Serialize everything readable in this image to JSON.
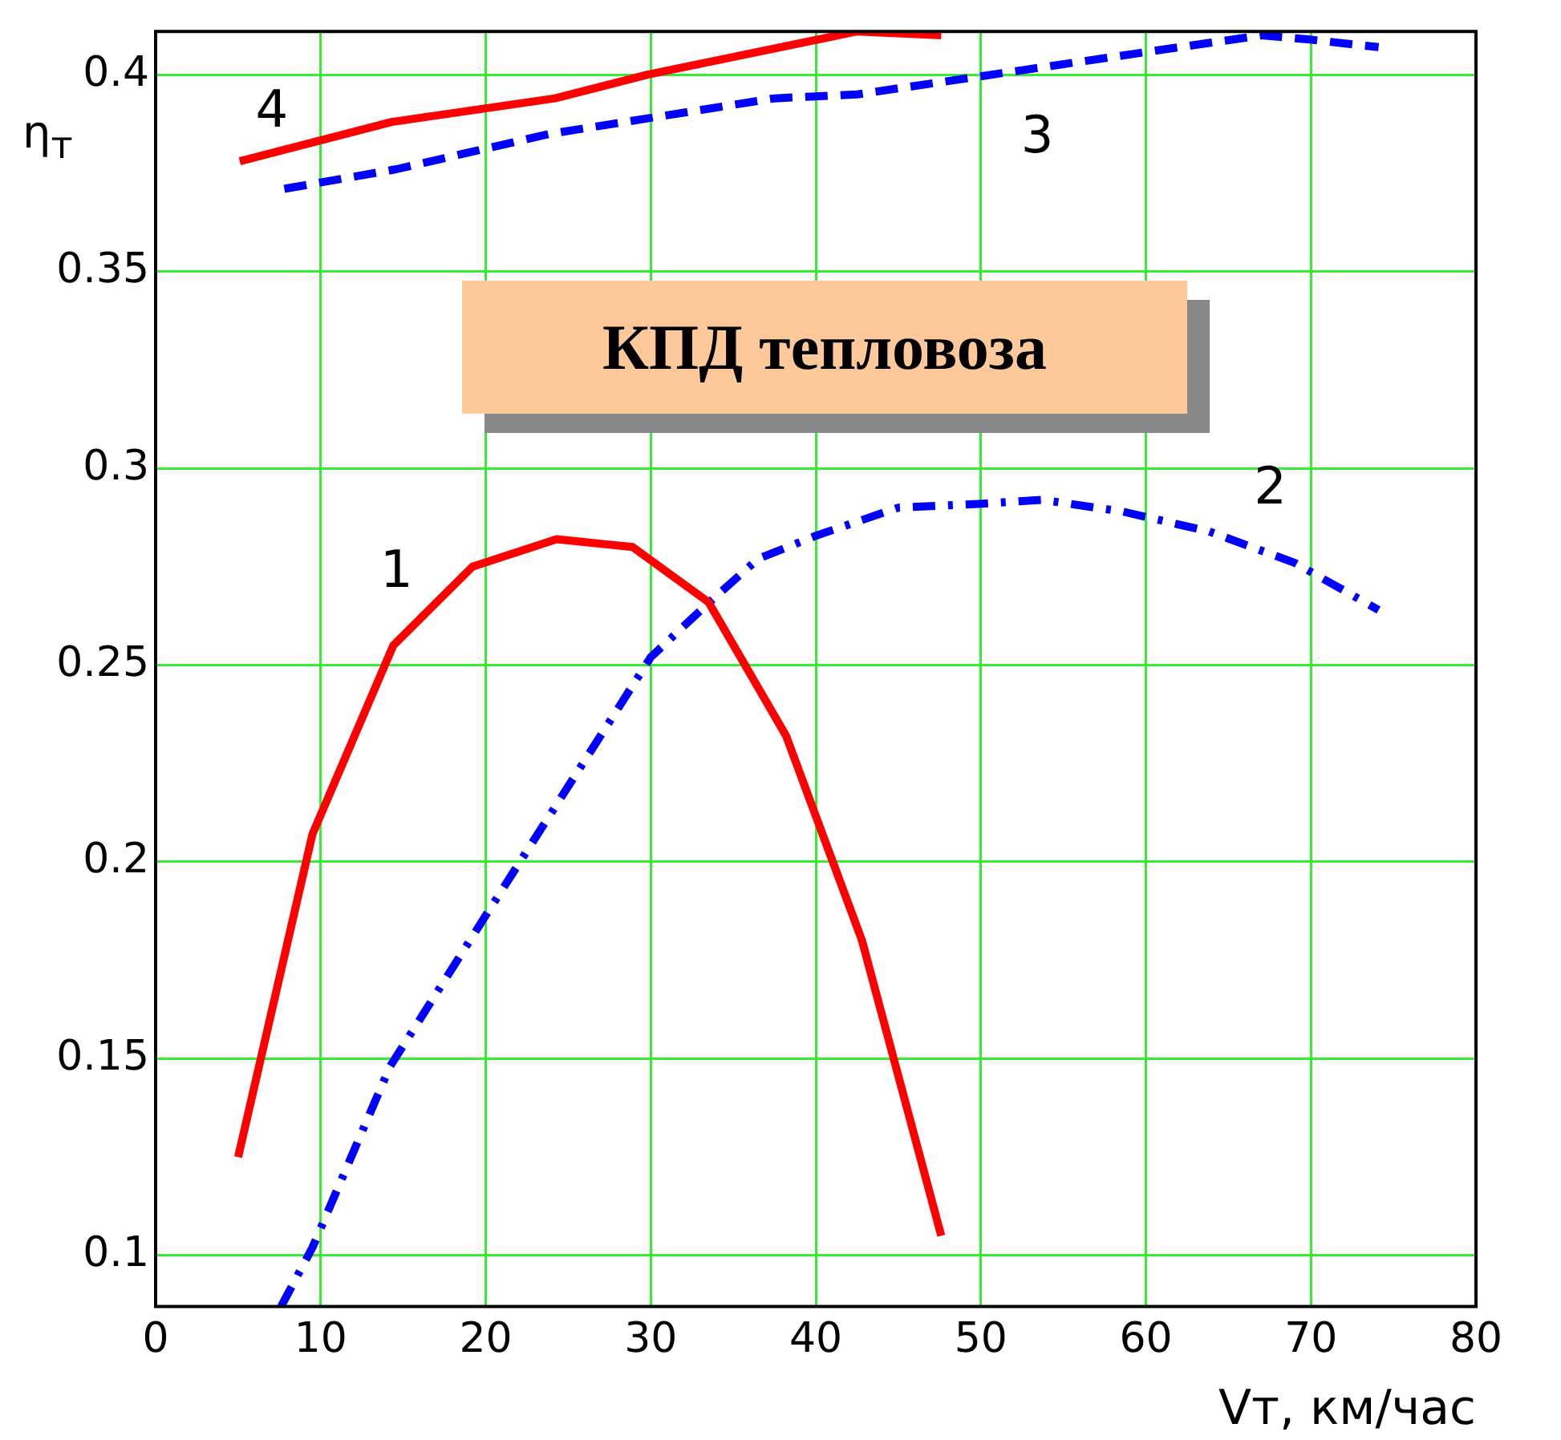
{
  "chart_data": {
    "type": "line",
    "title": "КПД тепловоза",
    "xlabel": "Vт, км/час",
    "ylabel": "η$_{т}$",
    "xlim": [
      0,
      80
    ],
    "xticks": [
      0,
      10,
      20,
      30,
      40,
      50,
      60,
      70,
      80
    ],
    "ylim": [
      0.087,
      0.411
    ],
    "yticks": [
      0.1,
      0.15,
      0.2,
      0.25,
      0.3,
      0.35,
      0.4
    ],
    "grid": true,
    "legend": false,
    "marker": "none",
    "series": [
      {
        "name": "1",
        "color": "#ff0000",
        "line_style": "solid",
        "x": [
          5,
          9.5,
          14.4,
          19.2,
          24.3,
          28.9,
          33.5,
          38.2,
          42.8,
          47.6
        ],
        "values": [
          0.125,
          0.207,
          0.255,
          0.275,
          0.282,
          0.28,
          0.266,
          0.232,
          0.18,
          0.105
        ]
      },
      {
        "name": "2",
        "color": "#0000ff",
        "line_style": "dashdot",
        "x": [
          7.6,
          9.5,
          14.2,
          20.4,
          26.8,
          30,
          33.3,
          36.5,
          40.1,
          45,
          50.1,
          53.7,
          58.6,
          63.8,
          69,
          74.1
        ],
        "values": [
          0.087,
          0.102,
          0.148,
          0.189,
          0.231,
          0.252,
          0.265,
          0.277,
          0.283,
          0.29,
          0.291,
          0.292,
          0.289,
          0.284,
          0.276,
          0.264
        ]
      },
      {
        "name": "3",
        "color": "#0000ff",
        "line_style": "dashed",
        "x": [
          7.8,
          14.6,
          23.9,
          37.5,
          42.5,
          53.9,
          60.4,
          67,
          69.8,
          74.1
        ],
        "values": [
          0.371,
          0.376,
          0.385,
          0.394,
          0.395,
          0.402,
          0.406,
          0.41,
          0.409,
          0.407
        ]
      },
      {
        "name": "4",
        "color": "#ff0000",
        "line_style": "solid",
        "x": [
          5.1,
          14.3,
          24.2,
          29.8,
          42.5,
          47.6
        ],
        "values": [
          0.378,
          0.388,
          0.394,
          0.4,
          0.411,
          0.41
        ]
      }
    ]
  }
}
